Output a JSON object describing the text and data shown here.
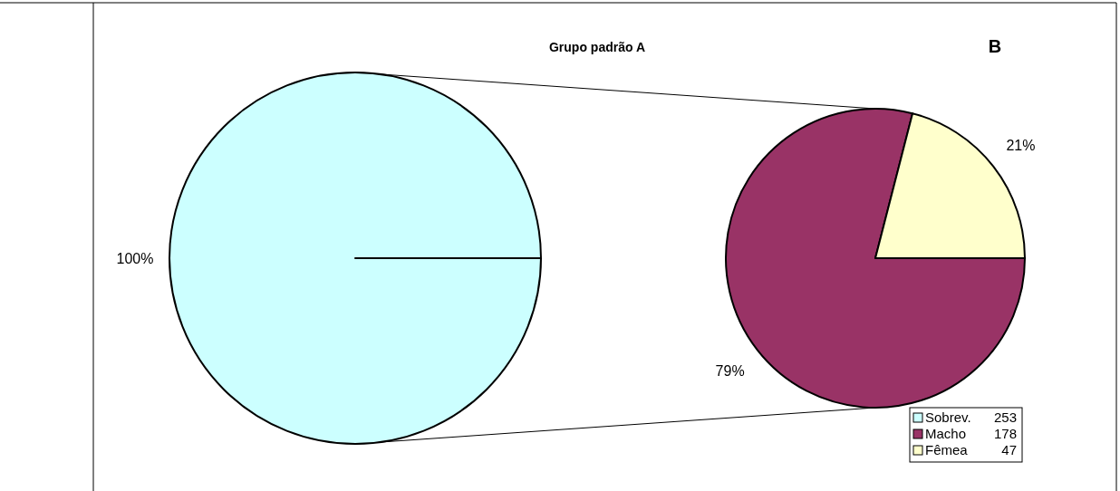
{
  "chart_data": [
    {
      "type": "pie",
      "title": "Grupo padrão A",
      "annotations": [
        "253"
      ],
      "categories": [
        "Sobrev."
      ],
      "values": [
        100
      ],
      "colors": [
        "#ccffff"
      ],
      "value_labels": [
        "100%"
      ],
      "legend": "bottom right"
    },
    {
      "type": "pie",
      "annotations": [
        "B",
        "178",
        "47"
      ],
      "categories": [
        "Macho",
        "Fêmea"
      ],
      "values": [
        79,
        21
      ],
      "colors": [
        "#993366",
        "#ffffcc"
      ],
      "value_labels": [
        "79%",
        "21%"
      ],
      "legend": "bottom right"
    }
  ]
}
